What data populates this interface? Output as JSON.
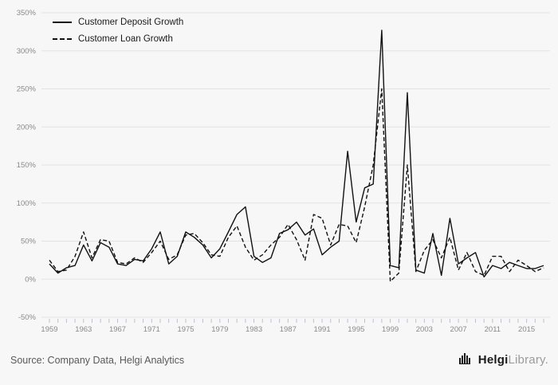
{
  "colors": {
    "background": "#f7f7f7",
    "grid": "#e3e3e3",
    "axis_text": "#8a8a8a",
    "tick": "#b9c2d2",
    "line": "#111111",
    "source_text": "#595959"
  },
  "footer": {
    "source": "Source: Company Data, Helgi Analytics",
    "logo_bold": "Helgi",
    "logo_light": "Library."
  },
  "chart_data": {
    "type": "line",
    "title": "",
    "xlabel": "",
    "ylabel": "",
    "ylim": [
      -50,
      350
    ],
    "yticks": [
      -50,
      0,
      50,
      100,
      150,
      200,
      250,
      300,
      350
    ],
    "xticks": [
      1959,
      1963,
      1967,
      1971,
      1975,
      1979,
      1983,
      1987,
      1991,
      1995,
      1999,
      2003,
      2007,
      2011,
      2015
    ],
    "grid": "horizontal",
    "legend_position": "top-left",
    "x": [
      1959,
      1960,
      1961,
      1962,
      1963,
      1964,
      1965,
      1966,
      1967,
      1968,
      1969,
      1970,
      1971,
      1972,
      1973,
      1974,
      1975,
      1976,
      1977,
      1978,
      1979,
      1980,
      1981,
      1982,
      1983,
      1984,
      1985,
      1986,
      1987,
      1988,
      1989,
      1990,
      1991,
      1992,
      1993,
      1994,
      1995,
      1996,
      1997,
      1998,
      1999,
      2000,
      2001,
      2002,
      2003,
      2004,
      2005,
      2006,
      2007,
      2008,
      2009,
      2010,
      2011,
      2012,
      2013,
      2014,
      2015,
      2016,
      2017
    ],
    "series": [
      {
        "id": "deposit",
        "name": "Customer Deposit Growth",
        "style": "solid",
        "values": [
          20,
          8,
          15,
          18,
          45,
          24,
          48,
          42,
          20,
          18,
          26,
          24,
          40,
          62,
          20,
          30,
          62,
          55,
          45,
          28,
          40,
          62,
          85,
          95,
          30,
          22,
          28,
          60,
          65,
          75,
          58,
          66,
          32,
          42,
          50,
          168,
          75,
          120,
          125,
          327,
          18,
          15,
          245,
          12,
          8,
          60,
          5,
          80,
          20,
          28,
          35,
          3,
          18,
          14,
          22,
          18,
          14,
          14,
          18
        ]
      },
      {
        "id": "loan",
        "name": "Customer Loan Growth",
        "style": "dashed",
        "values": [
          25,
          10,
          12,
          30,
          62,
          28,
          52,
          50,
          22,
          20,
          28,
          22,
          35,
          50,
          26,
          32,
          58,
          60,
          48,
          32,
          30,
          55,
          70,
          42,
          25,
          32,
          45,
          55,
          72,
          52,
          25,
          85,
          80,
          45,
          72,
          70,
          48,
          95,
          150,
          250,
          -3,
          8,
          150,
          10,
          38,
          52,
          28,
          55,
          12,
          35,
          10,
          5,
          30,
          30,
          10,
          25,
          18,
          10,
          15
        ]
      }
    ]
  }
}
